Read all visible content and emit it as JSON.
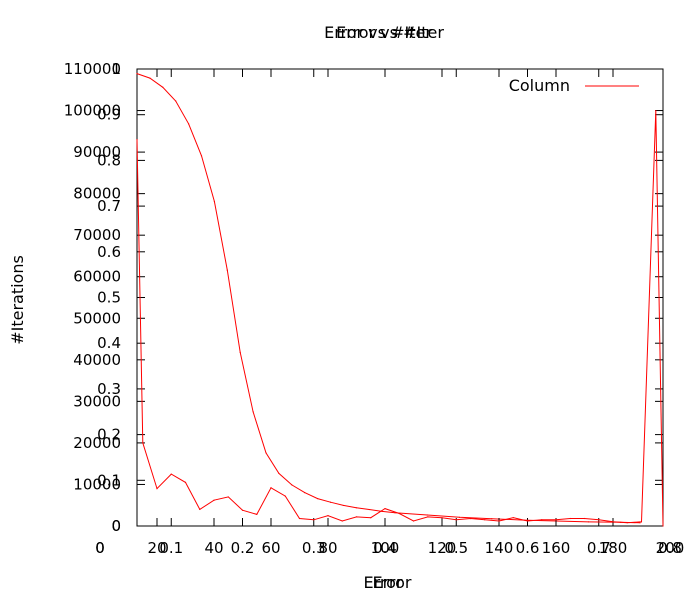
{
  "chart_data": [
    {
      "type": "line",
      "title": "Error vs #Iter",
      "xlabel": "Error",
      "ylabel": "#Iterations",
      "xlim": [
        0,
        0.8
      ],
      "ylim": [
        0,
        1
      ],
      "xticks": [
        "0",
        "0.1",
        "0.2",
        "0.3",
        "0.4",
        "0.5",
        "0.6",
        "0.7",
        "0.8"
      ],
      "yticks": [
        "0",
        "0.1",
        "0.2",
        "0.3",
        "0.4",
        "0.5",
        "0.6",
        "0.7",
        "0.8",
        "0.9",
        "1"
      ],
      "grid": false,
      "series": [
        {
          "color": "#ff0000",
          "x": [
            0.0,
            0.02,
            0.04,
            0.06,
            0.08,
            0.1,
            0.12,
            0.14,
            0.16,
            0.18,
            0.2,
            0.22,
            0.24,
            0.26,
            0.28,
            0.3,
            0.32,
            0.34,
            0.36,
            0.38,
            0.4,
            0.45,
            0.5,
            0.55,
            0.6,
            0.65,
            0.7,
            0.75,
            0.78
          ],
          "y": [
            0.99,
            0.98,
            0.96,
            0.93,
            0.88,
            0.81,
            0.71,
            0.56,
            0.38,
            0.25,
            0.16,
            0.115,
            0.09,
            0.073,
            0.06,
            0.052,
            0.045,
            0.04,
            0.036,
            0.032,
            0.029,
            0.024,
            0.019,
            0.016,
            0.013,
            0.011,
            0.009,
            0.008,
            0.007
          ]
        }
      ]
    },
    {
      "type": "line",
      "title": "Error vs #Iter",
      "xlabel": "Error",
      "xlim": [
        0,
        200
      ],
      "ylim": [
        0,
        110000
      ],
      "xticks": [
        "0",
        "20",
        "40",
        "60",
        "80",
        "100",
        "120",
        "140",
        "160",
        "180",
        "200"
      ],
      "yticks": [
        "0",
        "10000",
        "20000",
        "30000",
        "40000",
        "50000",
        "60000",
        "70000",
        "80000",
        "90000",
        "100000",
        "110000"
      ],
      "legend": "top-right",
      "grid": false,
      "series": [
        {
          "name": "Column",
          "color": "#ff0000",
          "x": [
            10,
            15,
            20,
            25,
            30,
            35,
            40,
            45,
            50,
            55,
            60,
            65,
            70,
            75,
            80,
            85,
            90,
            95,
            100,
            105,
            110,
            115,
            120,
            125,
            130,
            135,
            140,
            145,
            150,
            155,
            160,
            165,
            170,
            175,
            180,
            185,
            190,
            195,
            200
          ],
          "y": [
            93000,
            20000,
            9000,
            12500,
            10500,
            4000,
            6200,
            7000,
            3800,
            2800,
            9200,
            7200,
            1800,
            1500,
            2500,
            1200,
            2200,
            2000,
            4200,
            3000,
            1200,
            2200,
            2000,
            1500,
            1800,
            1500,
            1200,
            2000,
            1200,
            1500,
            1500,
            1800,
            1800,
            1500,
            1000,
            800,
            1000,
            100000,
            0
          ]
        }
      ]
    }
  ]
}
